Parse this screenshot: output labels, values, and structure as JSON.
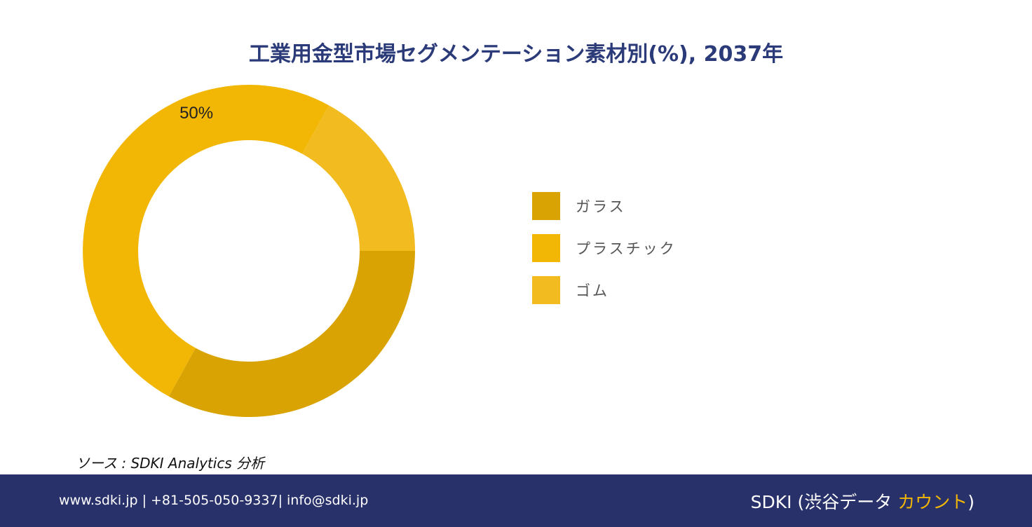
{
  "chart_data": {
    "type": "pie",
    "title": "工業用金型市場セグメンテーション素材別(%), 2037年",
    "categories": [
      "ガラス",
      "プラスチック",
      "ゴム"
    ],
    "values": [
      33,
      50,
      17
    ],
    "data_labels": [
      "",
      "50%",
      ""
    ],
    "colors": [
      "#d9a403",
      "#f2b705",
      "#f2bc20"
    ],
    "donut": true,
    "legend_position": "right"
  },
  "source": "ソース : SDKI Analytics 分析",
  "footer": {
    "contact": "www.sdki.jp | +81-505-050-9337| info@sdki.jp",
    "brand_prefix": "SDKI (渋谷データ ",
    "brand_highlight": "カウント",
    "brand_suffix": ")",
    "background": "#28316a",
    "highlight_color": "#f2b705"
  }
}
